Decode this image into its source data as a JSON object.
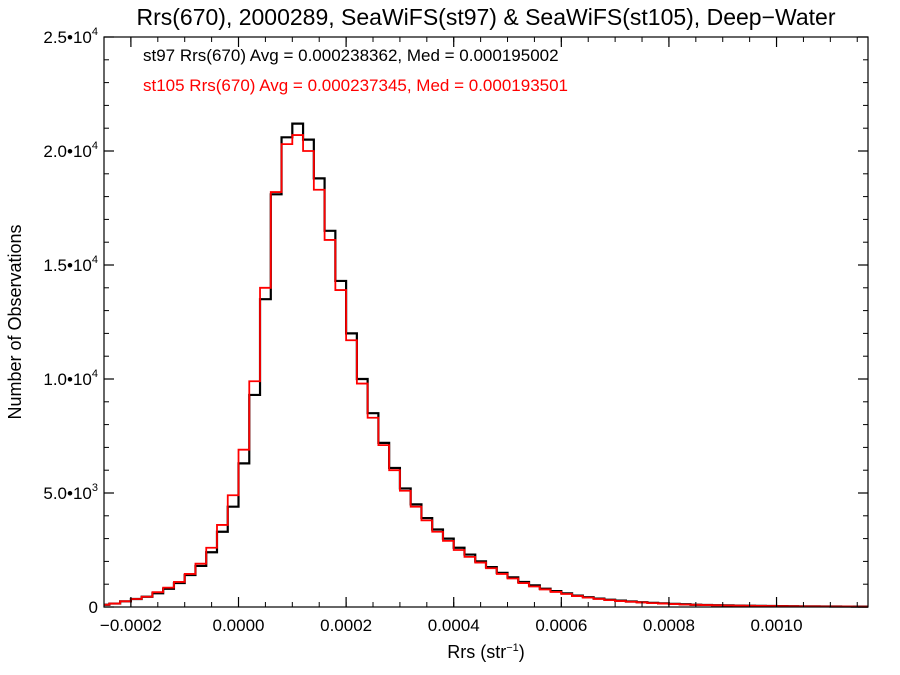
{
  "chart_data": {
    "type": "line",
    "style": "histogram-steps",
    "title": "Rrs(670), 2000289, SeaWiFS(st97) & SeaWiFS(st105), Deep−Water",
    "xlabel": "Rrs (str",
    "xlabel_sup": "−1",
    "xlabel_end": ")",
    "ylabel": "Number of Observations",
    "xlim": [
      -0.00025,
      0.00117
    ],
    "ylim": [
      0,
      25000
    ],
    "grid": false,
    "x_ticks": [
      {
        "value": -0.0002,
        "label": "−0.0002"
      },
      {
        "value": 0.0,
        "label": "0.0000"
      },
      {
        "value": 0.0002,
        "label": "0.0002"
      },
      {
        "value": 0.0004,
        "label": "0.0004"
      },
      {
        "value": 0.0006,
        "label": "0.0006"
      },
      {
        "value": 0.0008,
        "label": "0.0008"
      },
      {
        "value": 0.001,
        "label": "0.0010"
      }
    ],
    "y_ticks": [
      {
        "value": 0,
        "base": "0",
        "exp": ""
      },
      {
        "value": 5000,
        "base": "5.0•10",
        "exp": "3"
      },
      {
        "value": 10000,
        "base": "1.0•10",
        "exp": "4"
      },
      {
        "value": 15000,
        "base": "1.5•10",
        "exp": "4"
      },
      {
        "value": 20000,
        "base": "2.0•10",
        "exp": "4"
      },
      {
        "value": 25000,
        "base": "2.5•10",
        "exp": "4"
      }
    ],
    "annotations": [
      {
        "text": "st97 Rrs(670) Avg = 0.000238362, Med = 0.000195002",
        "color": "#000000"
      },
      {
        "text": "st105 Rrs(670) Avg = 0.000237345, Med = 0.000193501",
        "color": "#ff0000"
      }
    ],
    "series": [
      {
        "color": "#000000",
        "x": [
          -0.00025,
          -0.00023,
          -0.00021,
          -0.00019,
          -0.00017,
          -0.00015,
          -0.00013,
          -0.00011,
          -9e-05,
          -7e-05,
          -5e-05,
          -3e-05,
          -1e-05,
          1e-05,
          3e-05,
          5e-05,
          7e-05,
          9e-05,
          0.00011,
          0.00013,
          0.00015,
          0.00017,
          0.00019,
          0.00021,
          0.00023,
          0.00025,
          0.00027,
          0.00029,
          0.00031,
          0.00033,
          0.00035,
          0.00037,
          0.00039,
          0.00041,
          0.00043,
          0.00045,
          0.00047,
          0.00049,
          0.00051,
          0.00053,
          0.00055,
          0.00057,
          0.00059,
          0.00061,
          0.00063,
          0.00065,
          0.00067,
          0.00069,
          0.00071,
          0.00073,
          0.00075,
          0.00077,
          0.00079,
          0.00081,
          0.00083,
          0.00085,
          0.00087,
          0.00089,
          0.00091,
          0.00093,
          0.00095,
          0.00097,
          0.00099,
          0.00101,
          0.00103,
          0.00105,
          0.00107,
          0.00109,
          0.00111,
          0.00113,
          0.00115,
          0.00117
        ],
        "y": [
          100,
          150,
          250,
          350,
          450,
          600,
          800,
          1050,
          1400,
          1800,
          2400,
          3300,
          4400,
          6300,
          9300,
          13500,
          18100,
          20600,
          21200,
          20500,
          18800,
          16500,
          14300,
          12000,
          10000,
          8500,
          7200,
          6100,
          5200,
          4500,
          3900,
          3400,
          3000,
          2600,
          2300,
          2000,
          1750,
          1500,
          1300,
          1100,
          950,
          800,
          700,
          600,
          500,
          430,
          370,
          320,
          280,
          240,
          210,
          180,
          160,
          140,
          120,
          100,
          90,
          80,
          70,
          60,
          55,
          50,
          45,
          40,
          35,
          30,
          28,
          25,
          22,
          20,
          18,
          15
        ]
      },
      {
        "color": "#ff0000",
        "x": [
          -0.00025,
          -0.00023,
          -0.00021,
          -0.00019,
          -0.00017,
          -0.00015,
          -0.00013,
          -0.00011,
          -9e-05,
          -7e-05,
          -5e-05,
          -3e-05,
          -1e-05,
          1e-05,
          3e-05,
          5e-05,
          7e-05,
          9e-05,
          0.00011,
          0.00013,
          0.00015,
          0.00017,
          0.00019,
          0.00021,
          0.00023,
          0.00025,
          0.00027,
          0.00029,
          0.00031,
          0.00033,
          0.00035,
          0.00037,
          0.00039,
          0.00041,
          0.00043,
          0.00045,
          0.00047,
          0.00049,
          0.00051,
          0.00053,
          0.00055,
          0.00057,
          0.00059,
          0.00061,
          0.00063,
          0.00065,
          0.00067,
          0.00069,
          0.00071,
          0.00073,
          0.00075,
          0.00077,
          0.00079,
          0.00081,
          0.00083,
          0.00085,
          0.00087,
          0.00089,
          0.00091,
          0.00093,
          0.00095,
          0.00097,
          0.00099,
          0.00101,
          0.00103,
          0.00105,
          0.00107,
          0.00109,
          0.00111,
          0.00113,
          0.00115,
          0.00117
        ],
        "y": [
          100,
          150,
          250,
          350,
          450,
          650,
          850,
          1100,
          1450,
          1900,
          2600,
          3600,
          4900,
          6900,
          9900,
          14000,
          18200,
          20300,
          20700,
          20000,
          18300,
          16100,
          13900,
          11700,
          9800,
          8300,
          7100,
          6000,
          5100,
          4400,
          3800,
          3300,
          2900,
          2500,
          2200,
          1950,
          1700,
          1450,
          1250,
          1050,
          900,
          770,
          660,
          570,
          480,
          410,
          350,
          300,
          260,
          230,
          200,
          170,
          150,
          130,
          110,
          95,
          85,
          75,
          65,
          58,
          52,
          46,
          42,
          38,
          33,
          29,
          26,
          23,
          21,
          19,
          17,
          14
        ]
      }
    ]
  }
}
